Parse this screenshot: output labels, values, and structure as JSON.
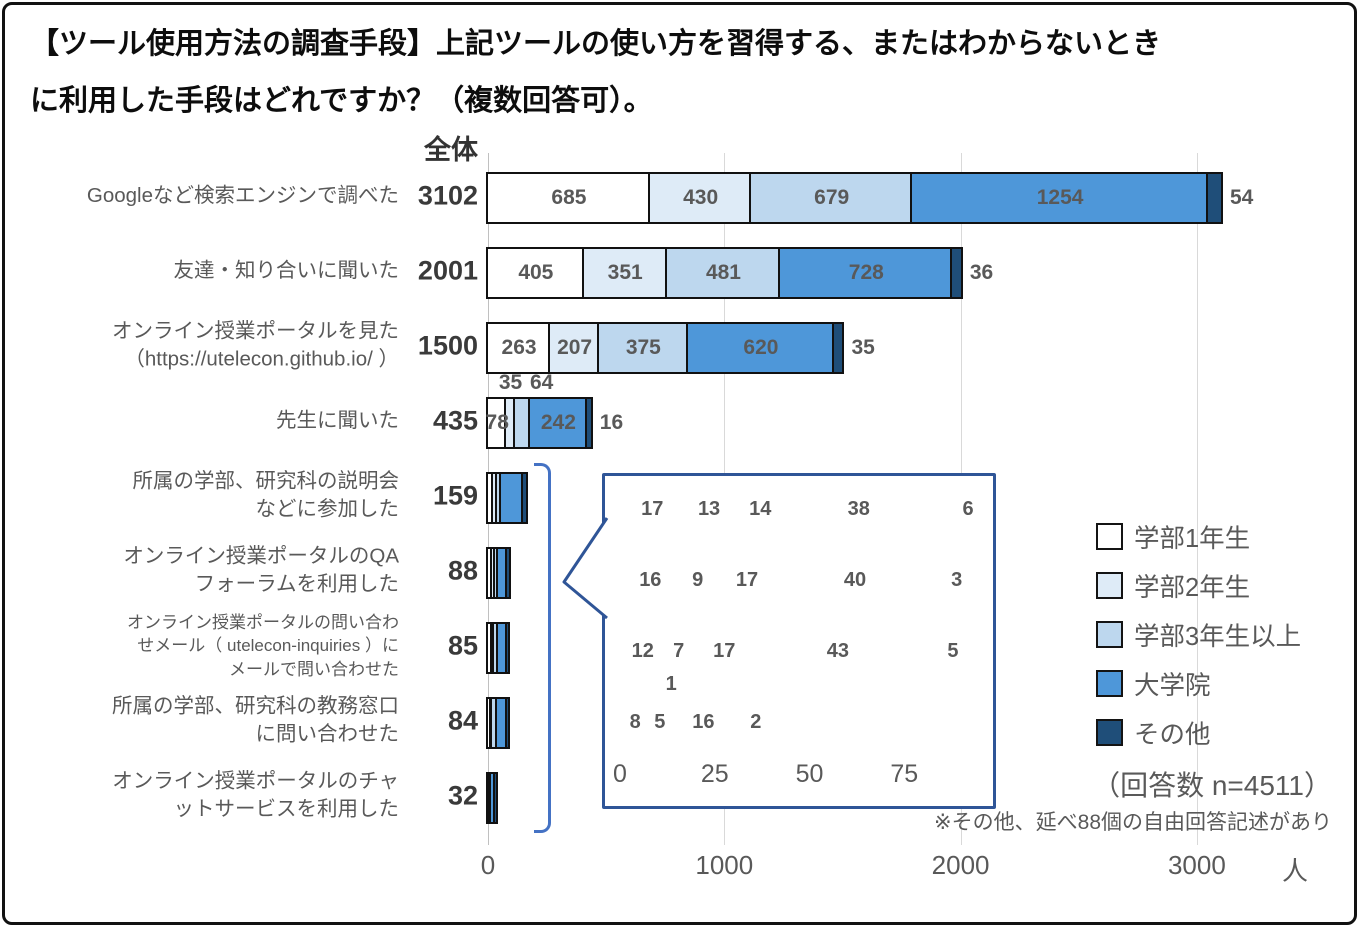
{
  "title": "【ツール使用方法の調査手段】上記ツールの使い方を習得する、またはわからないとき\nに利用した手段はどれですか？（複数回答可）。",
  "header": {
    "total_column_label": "全体"
  },
  "chart_data": {
    "type": "bar",
    "stacked": true,
    "orientation": "horizontal",
    "grid": true,
    "unit": "人",
    "x_ticks": [
      0,
      1000,
      2000,
      3000
    ],
    "x_max": 3200,
    "legend_position": "right",
    "legend": [
      {
        "label": "学部1年生",
        "color": "#ffffff"
      },
      {
        "label": "学部2年生",
        "color": "#deebf7"
      },
      {
        "label": "学部3年生以上",
        "color": "#bdd7ee"
      },
      {
        "label": "大学院",
        "color": "#4e97d9"
      },
      {
        "label": "その他",
        "color": "#1f4e79"
      }
    ],
    "rows": [
      {
        "label": "Googleなど検索エンジンで調べた",
        "total": 3102,
        "values": [
          685,
          430,
          679,
          1254,
          54
        ]
      },
      {
        "label": "友達・知り合いに聞いた",
        "total": 2001,
        "values": [
          405,
          351,
          481,
          728,
          36
        ]
      },
      {
        "label": "オンライン授業ポータルを見た\n（https://utelecon.github.io/ ）",
        "total": 1500,
        "values": [
          263,
          207,
          375,
          620,
          35
        ]
      },
      {
        "label": "先生に聞いた",
        "total": 435,
        "values": [
          78,
          35,
          64,
          242,
          16
        ]
      },
      {
        "label": "所属の学部、研究科の説明会\nなどに参加した",
        "total": 159,
        "values": [
          21,
          18,
          17,
          93,
          10
        ],
        "values_estimated_from_pixels": true,
        "hide_value_labels": true
      },
      {
        "label": "オンライン授業ポータルのQA\nフォーラムを利用した",
        "total": 88,
        "values": [
          17,
          13,
          14,
          38,
          6
        ],
        "hide_value_labels": true
      },
      {
        "label": "オンライン授業ポータルの問い合わ\nせメール（ utelecon-inquiries ）に\nメールで問い合わせた",
        "total": 85,
        "values": [
          16,
          9,
          17,
          40,
          3
        ],
        "hide_value_labels": true,
        "small_label": true
      },
      {
        "label": "所属の学部、研究科の教務窓口\nに問い合わせた",
        "total": 84,
        "values": [
          12,
          7,
          17,
          43,
          5
        ],
        "hide_value_labels": true
      },
      {
        "label": "オンライン授業ポータルのチャ\nットサービスを利用した",
        "total": 32,
        "values": [
          8,
          5,
          1,
          16,
          2
        ],
        "hide_value_labels": true
      }
    ],
    "inset": {
      "x_ticks": [
        0,
        25,
        50,
        75
      ],
      "rows": [
        {
          "total": 88,
          "values": [
            17,
            13,
            14,
            38,
            6
          ]
        },
        {
          "total": 85,
          "values": [
            16,
            9,
            17,
            40,
            3
          ]
        },
        {
          "total": 84,
          "values": [
            12,
            7,
            17,
            43,
            5
          ]
        },
        {
          "total": 32,
          "values": [
            8,
            5,
            1,
            16,
            2
          ]
        }
      ]
    }
  },
  "annotations": {
    "response_count": "（回答数 n=4511）",
    "footnote": "※その他、延べ88個の自由回答記述があり"
  }
}
